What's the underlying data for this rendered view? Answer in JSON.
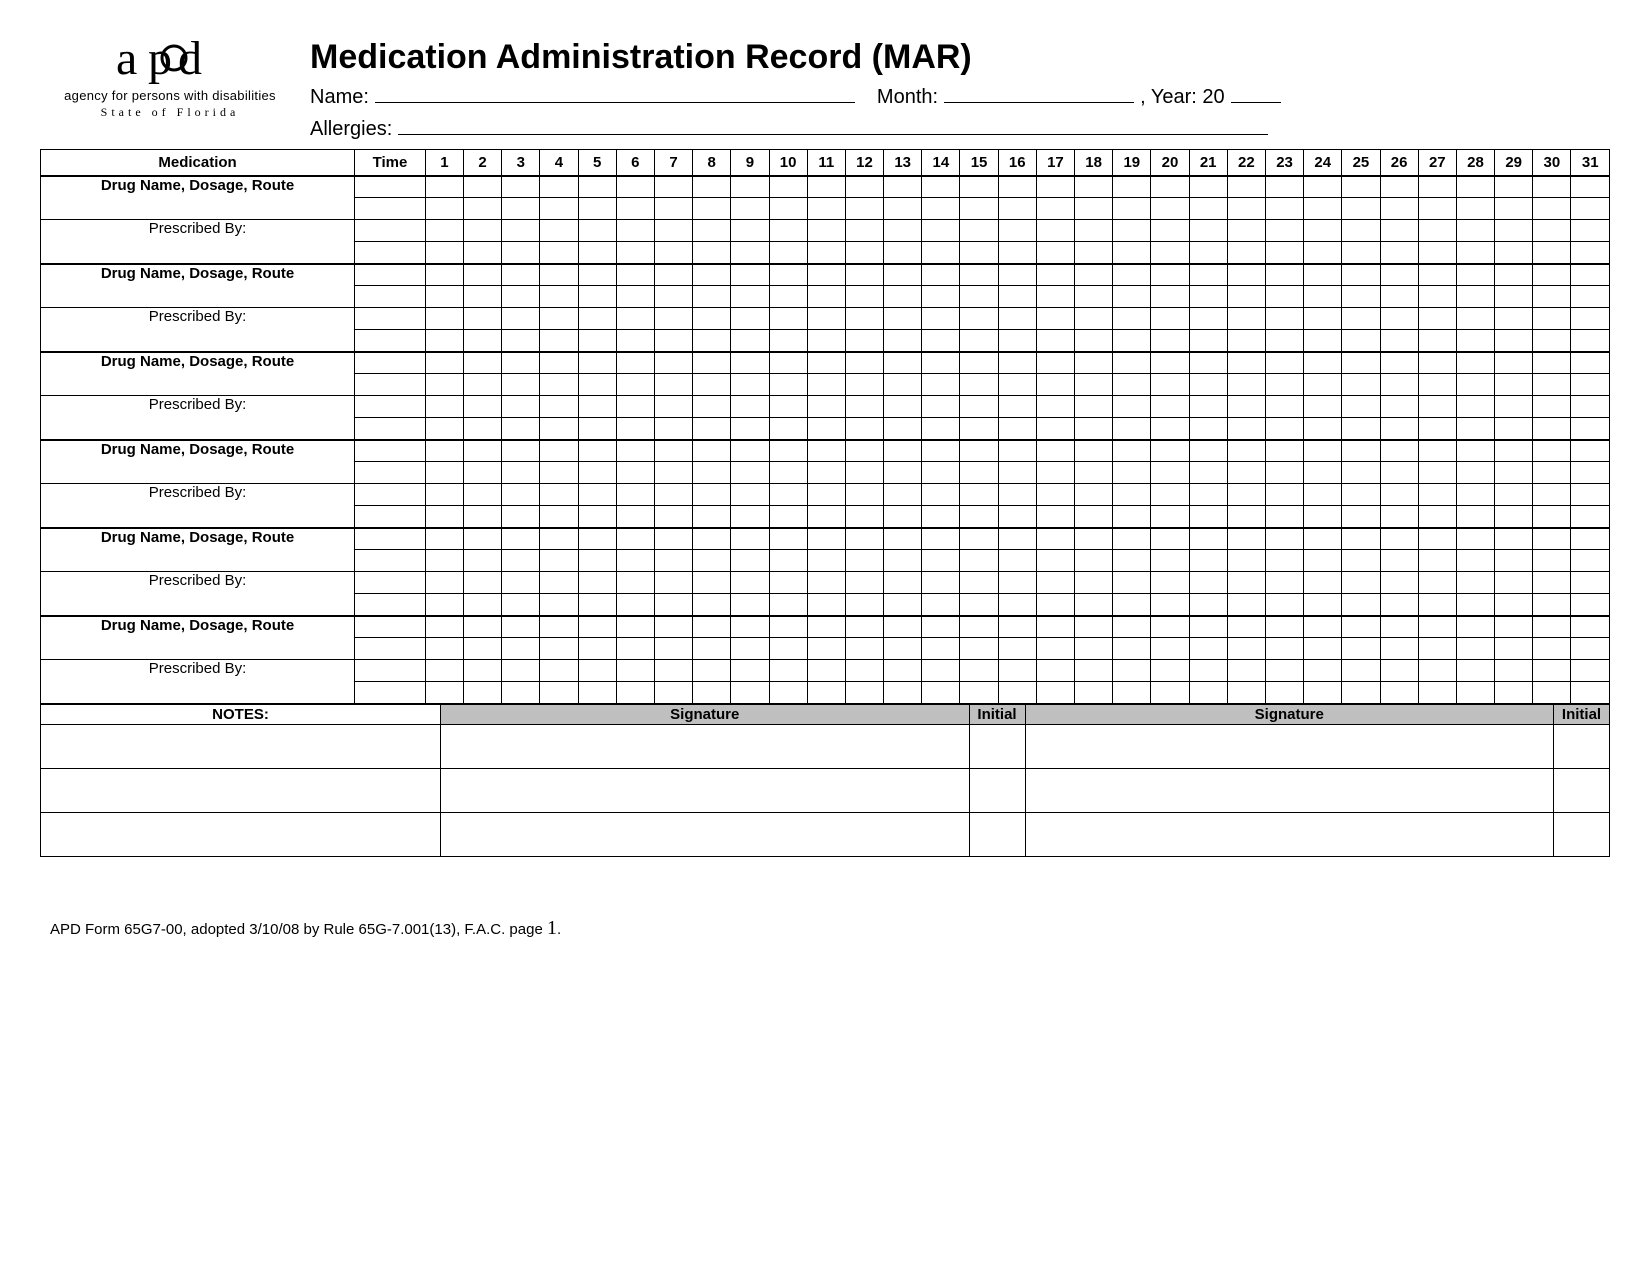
{
  "logo": {
    "text": "apd",
    "agency": "agency for persons with disabilities",
    "state": "State of Florida"
  },
  "title": "Medication Administration Record (MAR)",
  "fields": {
    "name_label": "Name:",
    "month_label": "Month:",
    "year_label": ", Year:  20",
    "allergies_label": "Allergies:"
  },
  "table": {
    "med_header": "Medication",
    "time_header": "Time",
    "days": [
      "1",
      "2",
      "3",
      "4",
      "5",
      "6",
      "7",
      "8",
      "9",
      "10",
      "11",
      "12",
      "13",
      "14",
      "15",
      "16",
      "17",
      "18",
      "19",
      "20",
      "21",
      "22",
      "23",
      "24",
      "25",
      "26",
      "27",
      "28",
      "29",
      "30",
      "31"
    ],
    "drug_label": "Drug Name, Dosage, Route",
    "prescribed_label": "Prescribed By:",
    "med_blocks": 6,
    "rows_per_block": 4
  },
  "signature": {
    "notes_label": "NOTES:",
    "signature_label": "Signature",
    "initial_label": "Initial",
    "body_rows": 3
  },
  "footer": {
    "text_a": "APD Form 65G7-00, adopted 3/10/08 by Rule 65G-7.001(13), F.A.C.  page ",
    "page": "1",
    "text_b": "."
  },
  "style": {
    "background": "#ffffff",
    "border_color": "#000000",
    "sig_header_bg": "#bfbfbf"
  }
}
